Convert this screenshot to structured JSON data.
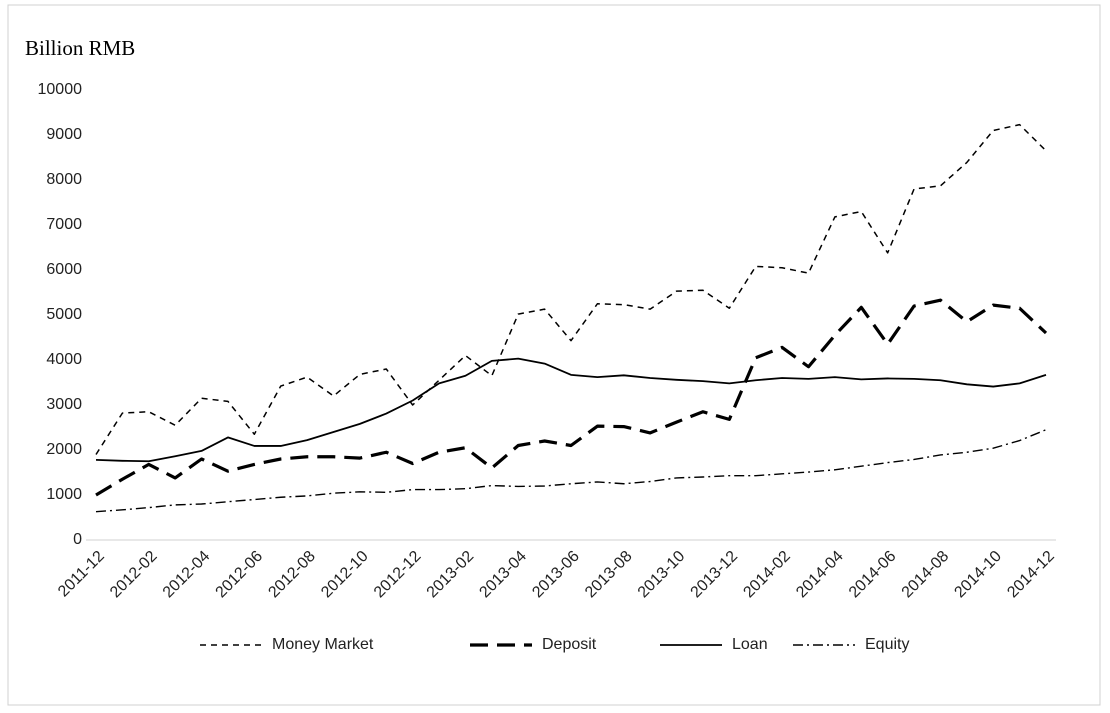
{
  "chart_data": {
    "type": "line",
    "title": "Billion RMB",
    "categories": [
      "2011-12",
      null,
      "2012-02",
      null,
      "2012-04",
      null,
      "2012-06",
      null,
      "2012-08",
      null,
      "2012-10",
      null,
      "2012-12",
      null,
      "2013-02",
      null,
      "2013-04",
      null,
      "2013-06",
      null,
      "2013-08",
      null,
      "2013-10",
      null,
      "2013-12",
      null,
      "2014-02",
      null,
      "2014-04",
      null,
      "2014-06",
      null,
      "2014-08",
      null,
      "2014-10",
      null,
      "2014-12"
    ],
    "series": [
      {
        "name": "Money Market",
        "color": "#000000",
        "style": "dashed",
        "values": [
          1900,
          2820,
          2850,
          2550,
          3150,
          3080,
          2350,
          3420,
          3620,
          3200,
          3680,
          3800,
          3000,
          3550,
          4100,
          3650,
          5020,
          5130,
          4430,
          5250,
          5230,
          5130,
          5530,
          5550,
          5150,
          6080,
          6050,
          5930,
          7180,
          7300,
          6380,
          7800,
          7870,
          8390,
          9100,
          9230,
          8650
        ]
      },
      {
        "name": "Deposit",
        "color": "#000000",
        "style": "long-dashed",
        "values": [
          1000,
          1350,
          1680,
          1380,
          1800,
          1530,
          1680,
          1800,
          1850,
          1850,
          1820,
          1950,
          1700,
          1950,
          2050,
          1600,
          2100,
          2200,
          2100,
          2530,
          2520,
          2380,
          2620,
          2850,
          2680,
          4050,
          4280,
          3850,
          4550,
          5170,
          4350,
          5200,
          5330,
          4850,
          5220,
          5150,
          4600
        ]
      },
      {
        "name": "Loan",
        "color": "#000000",
        "style": "solid",
        "values": [
          1780,
          1760,
          1750,
          1860,
          1980,
          2280,
          2090,
          2090,
          2220,
          2400,
          2580,
          2810,
          3100,
          3480,
          3650,
          3980,
          4030,
          3920,
          3670,
          3620,
          3660,
          3600,
          3560,
          3530,
          3480,
          3550,
          3600,
          3580,
          3620,
          3570,
          3590,
          3580,
          3550,
          3460,
          3410,
          3480,
          3670
        ]
      },
      {
        "name": "Equity",
        "color": "#000000",
        "style": "dash-dot",
        "values": [
          630,
          670,
          720,
          780,
          800,
          850,
          900,
          950,
          980,
          1040,
          1070,
          1060,
          1120,
          1120,
          1140,
          1210,
          1190,
          1200,
          1250,
          1290,
          1250,
          1300,
          1380,
          1400,
          1430,
          1430,
          1470,
          1510,
          1560,
          1640,
          1720,
          1790,
          1890,
          1950,
          2040,
          2210,
          2450
        ]
      }
    ],
    "ylim": [
      0,
      10000
    ],
    "yticks": [
      0,
      1000,
      2000,
      3000,
      4000,
      5000,
      6000,
      7000,
      8000,
      9000,
      10000
    ],
    "grid": false,
    "legend": "bottom"
  }
}
